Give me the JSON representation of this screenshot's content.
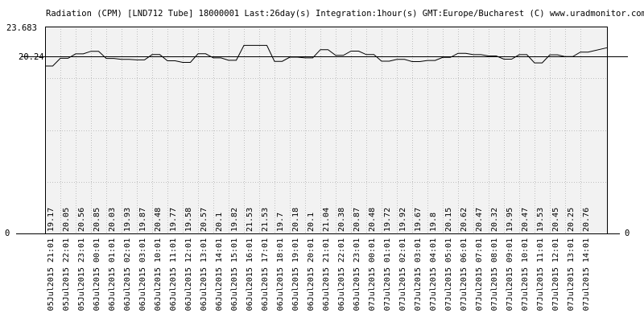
{
  "chart_data": {
    "type": "line",
    "title": "Radiation (CPM) [LND712 Tube] 18000001 Last:26day(s) Integration:1hour(s) GMT:Europe/Bucharest (C) www.uradmonitor.com",
    "ylim": [
      0,
      23.683
    ],
    "ymax_label": "23.683",
    "yref_label": "20.24",
    "ymin_label": "0",
    "ymin_label_right": "0",
    "mean_line_value": 20.24,
    "grid": true,
    "x": [
      "05Jul2015 21:01",
      "05Jul2015 22:01",
      "05Jul2015 23:01",
      "06Jul2015 00:01",
      "06Jul2015 01:01",
      "06Jul2015 02:01",
      "06Jul2015 03:01",
      "06Jul2015 10:01",
      "06Jul2015 11:01",
      "06Jul2015 12:01",
      "06Jul2015 13:01",
      "06Jul2015 14:01",
      "06Jul2015 15:01",
      "06Jul2015 16:01",
      "06Jul2015 17:01",
      "06Jul2015 18:01",
      "06Jul2015 19:01",
      "06Jul2015 20:01",
      "06Jul2015 21:01",
      "06Jul2015 22:01",
      "06Jul2015 23:01",
      "07Jul2015 00:01",
      "07Jul2015 01:01",
      "07Jul2015 02:01",
      "07Jul2015 03:01",
      "07Jul2015 04:01",
      "07Jul2015 05:01",
      "07Jul2015 06:01",
      "07Jul2015 07:01",
      "07Jul2015 08:01",
      "07Jul2015 09:01",
      "07Jul2015 10:01",
      "07Jul2015 11:01",
      "07Jul2015 12:01",
      "07Jul2015 13:01",
      "07Jul2015 14:01"
    ],
    "values": [
      19.17,
      20.05,
      20.56,
      20.85,
      20.03,
      19.93,
      19.87,
      20.48,
      19.77,
      19.58,
      20.57,
      20.1,
      19.82,
      21.53,
      21.53,
      19.7,
      20.18,
      20.1,
      21.04,
      20.38,
      20.87,
      20.48,
      19.72,
      19.92,
      19.67,
      19.8,
      20.15,
      20.62,
      20.47,
      20.32,
      19.95,
      20.47,
      19.53,
      20.45,
      20.25,
      20.76
    ],
    "value_labels": [
      "19.17",
      "20.05",
      "20.56",
      "20.85",
      "20.03",
      "19.93",
      "19.87",
      "20.48",
      "19.77",
      "19.58",
      "20.57",
      "20.1",
      "19.82",
      "21.53",
      "21.53",
      "19.7",
      "20.18",
      "20.1",
      "21.04",
      "20.38",
      "20.87",
      "20.48",
      "19.72",
      "19.92",
      "19.67",
      "19.8",
      "20.15",
      "20.62",
      "20.47",
      "20.32",
      "19.95",
      "20.47",
      "19.53",
      "20.45",
      "20.25",
      "20.76"
    ],
    "colors": {
      "plot_background": "#f2f2f2",
      "grid": "#c0c0c0",
      "line": "#000000",
      "frame": "#000000",
      "text": "#000000"
    }
  }
}
